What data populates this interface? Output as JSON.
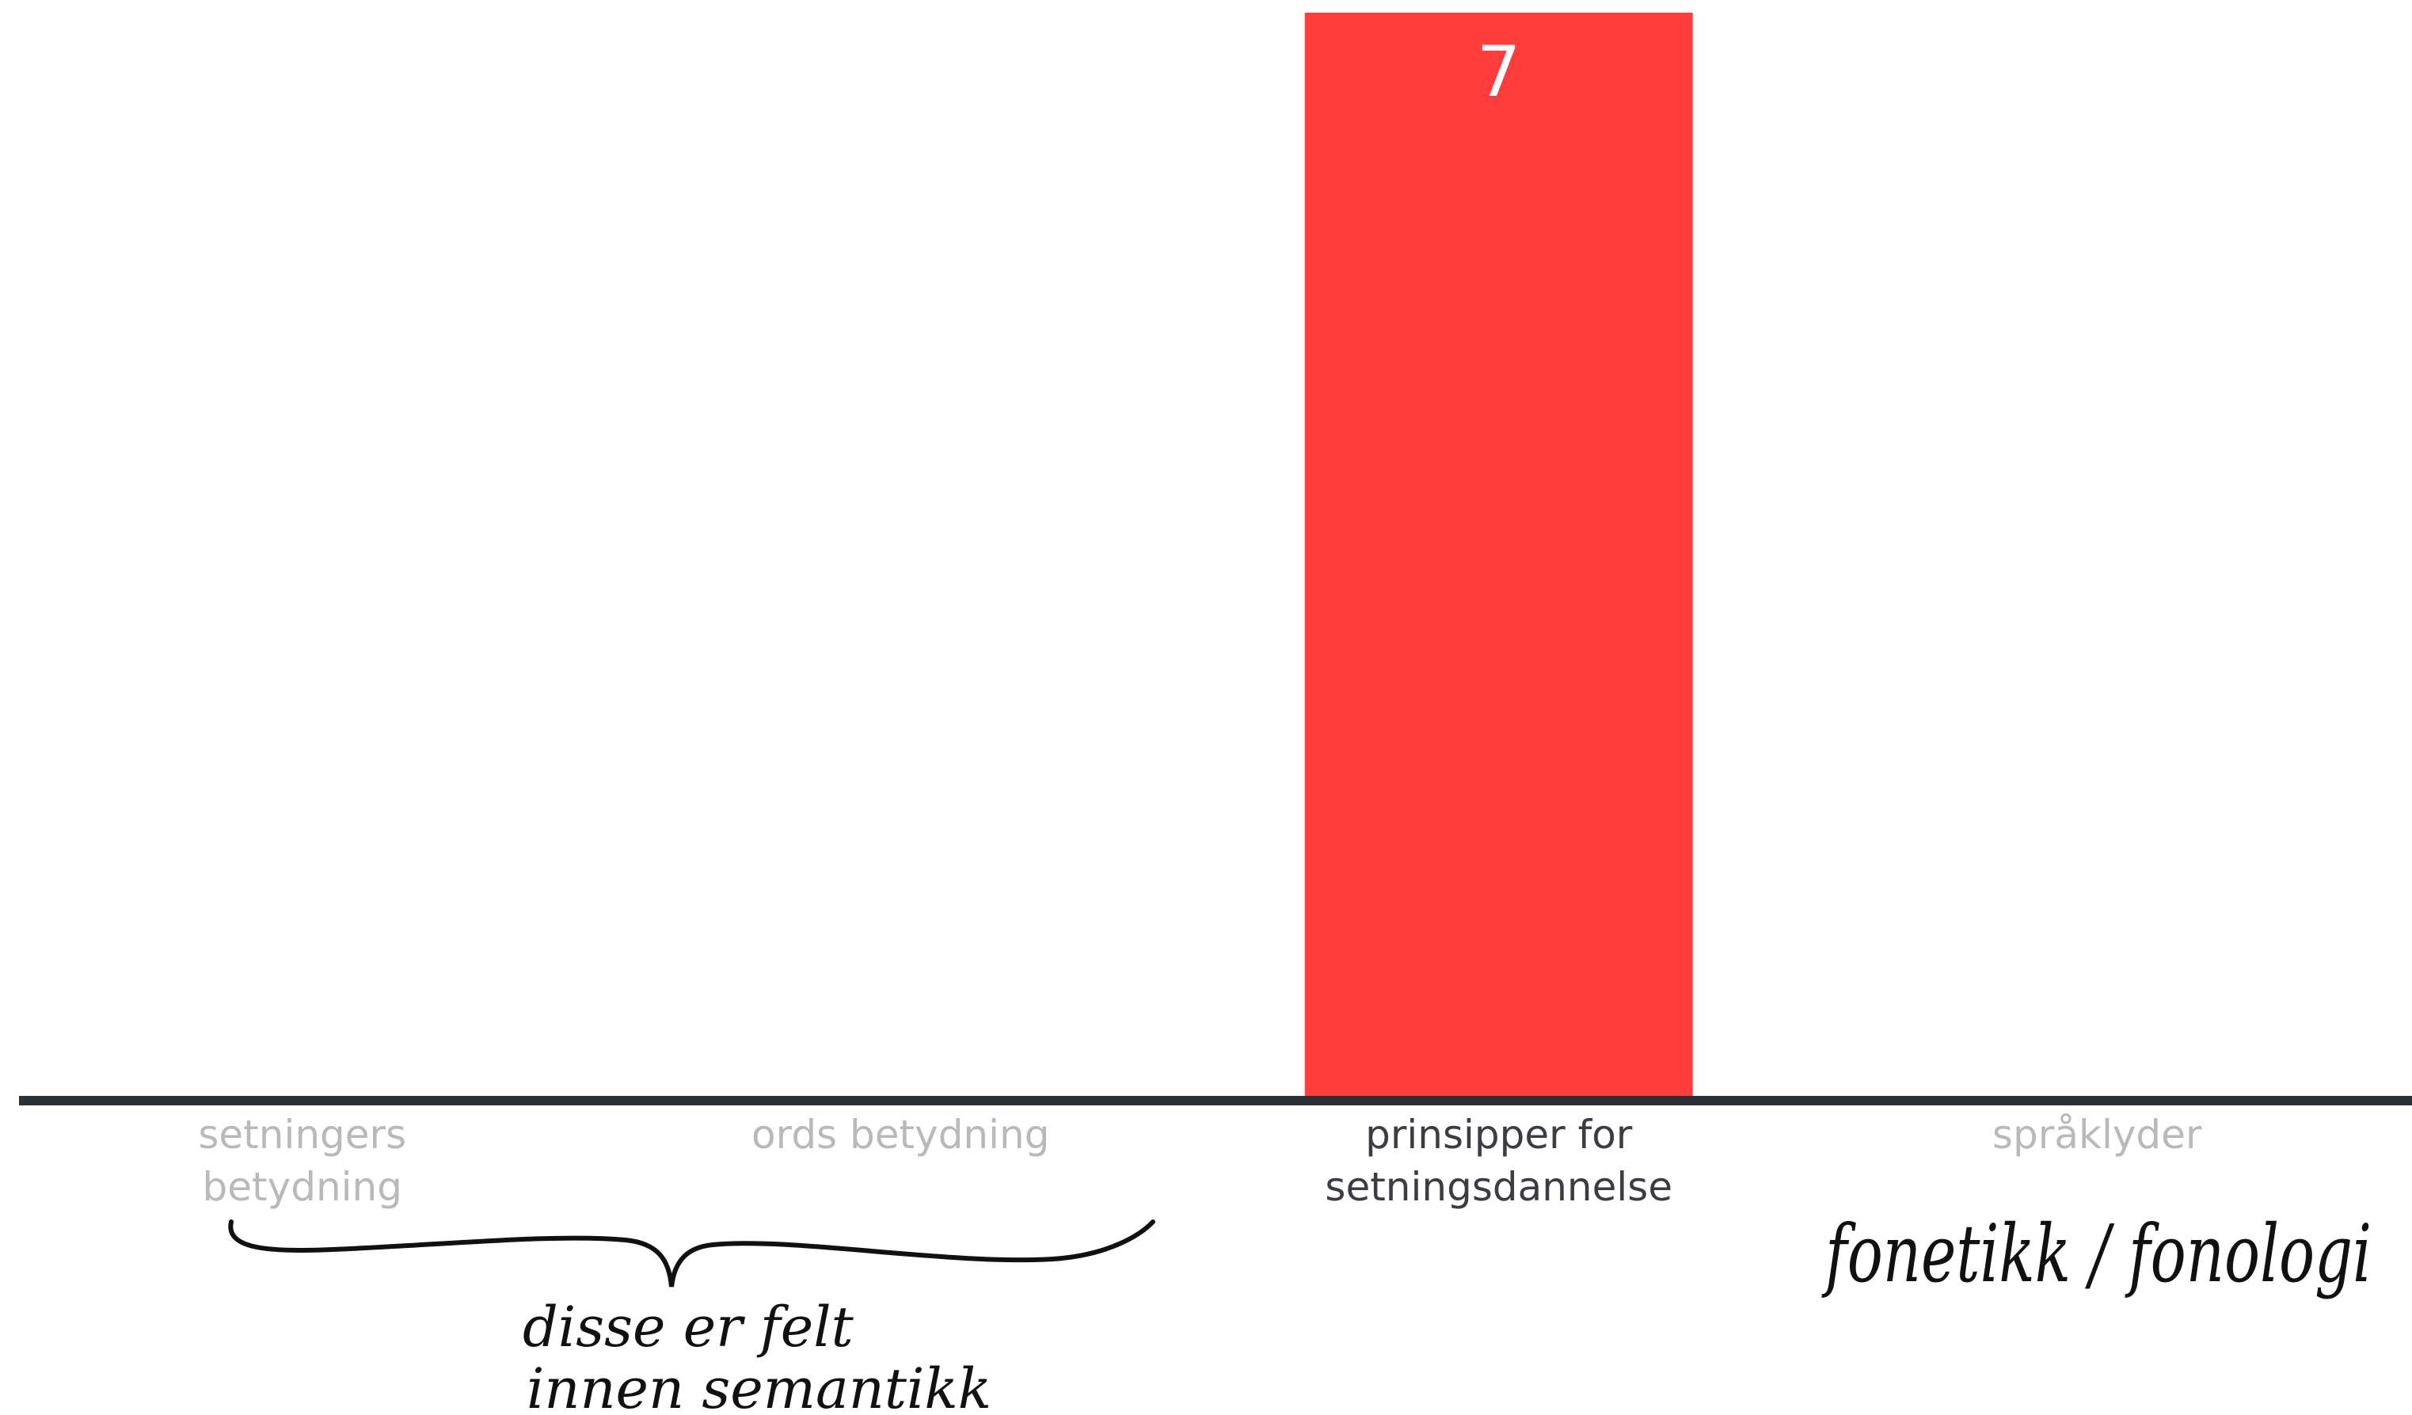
{
  "chart_data": {
    "type": "bar",
    "categories": [
      [
        "setningers",
        "betydning"
      ],
      [
        "ords betydning"
      ],
      [
        "prinsipper for",
        "setningsdannelse"
      ],
      [
        "språklyder"
      ]
    ],
    "values": [
      0,
      0,
      7,
      0
    ],
    "highlight_index": 2,
    "ylim": [
      0,
      7
    ],
    "grid": false,
    "colors": {
      "bar": "#ff3d3d",
      "axis": "#2b2f36",
      "muted_label": "#b9b9b9",
      "active_label": "#3a3d44",
      "value_label": "#ffffff"
    }
  },
  "annotations": {
    "semantics_note": [
      "disse  er  felt",
      "innen  semantikk"
    ],
    "phonetics_note": "fonetikk / fonologi"
  }
}
